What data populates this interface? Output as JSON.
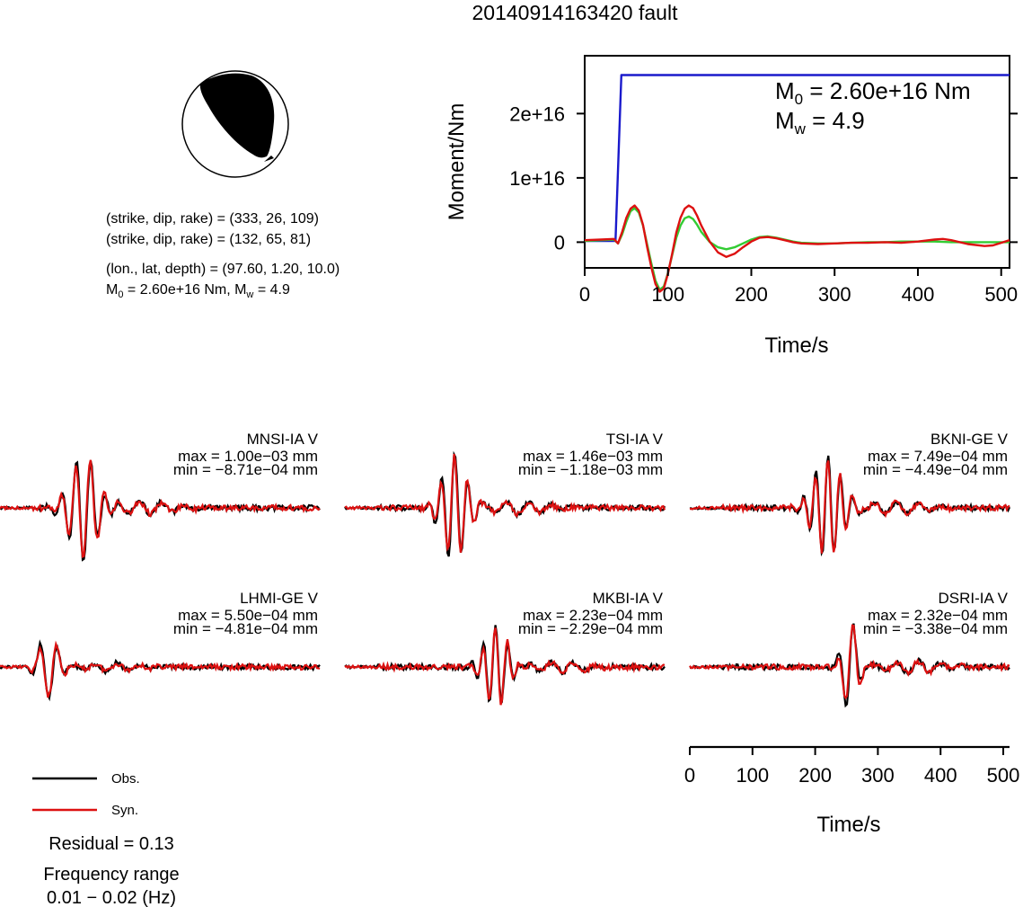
{
  "title": "20140914163420 fault",
  "mechanism": {
    "line1": "(strike, dip, rake) = (333, 26, 109)",
    "line2": "(strike, dip, rake) = (132, 65, 81)",
    "line3": "(lon., lat, depth) = (97.60, 1.20, 10.0)",
    "line4_m0": "2.60e+16 Nm",
    "line4_mw": "4.9",
    "line4_m_prefix": "M",
    "line4_m_sub": "0",
    "line4_eq": " = ",
    "line4_sep": ", M",
    "line4_w": "w",
    "strike1": 333,
    "dip1": 26,
    "rake1": 109,
    "strike2": 132,
    "dip2": 65,
    "rake2": 81,
    "lon": 97.6,
    "lat": 1.2,
    "depth": 10.0
  },
  "colors": {
    "observed": "#000000",
    "synthetic": "#dd1111",
    "moment": "#1a1acc",
    "stf": "#33cc33"
  },
  "chart_data": [
    {
      "type": "line",
      "name": "moment-rate",
      "ylabel": "Moment/Nm",
      "xlabel": "Time/s",
      "xlim": [
        0,
        510
      ],
      "ylim": [
        -4000000000000000.0,
        2.9e+16
      ],
      "xticks": [
        0,
        100,
        200,
        300,
        400,
        500
      ],
      "xtick_labels": [
        "0",
        "100",
        "200",
        "300",
        "400",
        "500"
      ],
      "yticks": [
        0,
        1e+16,
        2e+16
      ],
      "ytick_labels": [
        "0",
        "1e+16",
        "2e+16"
      ],
      "annotation_m0_prefix": "M",
      "annotation_m0_sub": "0",
      "annotation_m0_value": " = 2.60e+16 Nm",
      "annotation_mw_prefix": "M",
      "annotation_mw_sub": "w",
      "annotation_mw_value": " = 4.9",
      "series": [
        {
          "color": "#1a1acc",
          "x": [
            0,
            37,
            44,
            510
          ],
          "y": [
            200000000000000.0,
            200000000000000.0,
            2.6e+16,
            2.6e+16
          ]
        },
        {
          "color": "#33cc33",
          "x": [
            0,
            20,
            35,
            40,
            45,
            50,
            55,
            60,
            65,
            70,
            75,
            80,
            85,
            90,
            95,
            100,
            105,
            110,
            115,
            120,
            125,
            130,
            135,
            140,
            150,
            160,
            170,
            180,
            190,
            200,
            210,
            220,
            230,
            240,
            250,
            260,
            280,
            300,
            320,
            340,
            360,
            380,
            400,
            420,
            440,
            460,
            480,
            500,
            510
          ],
          "y": [
            200000000000000.0,
            300000000000000.0,
            400000000000000.0,
            -200000000000000.0,
            1200000000000000.0,
            3200000000000000.0,
            4800000000000000.0,
            5300000000000000.0,
            4600000000000000.0,
            2600000000000000.0,
            -400000000000000.0,
            -3300000000000000.0,
            -6000000000000000.0,
            -7400000000000000.0,
            -6900000000000000.0,
            -4800000000000000.0,
            -2000000000000000.0,
            700000000000000.0,
            2600000000000000.0,
            3700000000000000.0,
            4000000000000000.0,
            3600000000000000.0,
            2700000000000000.0,
            1600000000000000.0,
            40000000000000.0,
            -800000000000000.0,
            -1100000000000000.0,
            -800000000000000.0,
            -200000000000000.0,
            400000000000000.0,
            800000000000000.0,
            900000000000000.0,
            700000000000000.0,
            400000000000000.0,
            100000000000000.0,
            -100000000000000.0,
            -200000000000000.0,
            -200000000000000.0,
            -100000000000000.0,
            0,
            0,
            100000000000000.0,
            100000000000000.0,
            100000000000000.0,
            0,
            0,
            0,
            0,
            0
          ]
        },
        {
          "color": "#dd1111",
          "x": [
            0,
            20,
            35,
            40,
            45,
            50,
            55,
            60,
            65,
            70,
            75,
            80,
            85,
            90,
            95,
            100,
            105,
            110,
            115,
            120,
            125,
            130,
            135,
            140,
            150,
            160,
            170,
            180,
            190,
            200,
            210,
            220,
            230,
            240,
            250,
            260,
            280,
            300,
            320,
            340,
            360,
            380,
            400,
            420,
            430,
            440,
            460,
            480,
            490,
            500,
            510
          ],
          "y": [
            300000000000000.0,
            400000000000000.0,
            500000000000000.0,
            -200000000000000.0,
            1600000000000000.0,
            3800000000000000.0,
            5200000000000000.0,
            5700000000000000.0,
            4900000000000000.0,
            2700000000000000.0,
            -800000000000000.0,
            -3900000000000000.0,
            -6500000000000000.0,
            -7700000000000000.0,
            -7200000000000000.0,
            -4900000000000000.0,
            -1800000000000000.0,
            1500000000000000.0,
            3800000000000000.0,
            5200000000000000.0,
            5700000000000000.0,
            5300000000000000.0,
            4100000000000000.0,
            2600000000000000.0,
            100000000000000.0,
            -1600000000000000.0,
            -2300000000000000.0,
            -1800000000000000.0,
            -800000000000000.0,
            100000000000000.0,
            700000000000000.0,
            800000000000000.0,
            600000000000000.0,
            300000000000000.0,
            0,
            -200000000000000.0,
            -300000000000000.0,
            -200000000000000.0,
            -100000000000000.0,
            -100000000000000.0,
            0,
            -100000000000000.0,
            100000000000000.0,
            400000000000000.0,
            500000000000000.0,
            300000000000000.0,
            -300000000000000.0,
            -600000000000000.0,
            -500000000000000.0,
            -100000000000000.0,
            300000000000000.0
          ]
        }
      ]
    },
    {
      "type": "line",
      "name": "waveforms",
      "xlabel": "Time/s",
      "xlim": [
        0,
        510
      ],
      "xticks": [
        0,
        100,
        200,
        300,
        400,
        500
      ],
      "xtick_labels": [
        "0",
        "100",
        "200",
        "300",
        "400",
        "500"
      ],
      "legend": {
        "observed": "Obs.",
        "synthetic": "Syn.",
        "placement": "bottom-left"
      },
      "stations": [
        {
          "name": "MNSI-IA V",
          "max": "max = 1.00e−03 mm",
          "min": "min = −8.71e−04 mm",
          "seed": 11
        },
        {
          "name": "TSI-IA V",
          "max": "max = 1.46e−03 mm",
          "min": "min = −1.18e−03 mm",
          "seed": 23
        },
        {
          "name": "BKNI-GE V",
          "max": "max = 7.49e−04 mm",
          "min": "min = −4.49e−04 mm",
          "seed": 37
        },
        {
          "name": "LHMI-GE V",
          "max": "max = 5.50e−04 mm",
          "min": "min = −4.81e−04 mm",
          "seed": 41
        },
        {
          "name": "MKBI-IA V",
          "max": "max = 2.23e−04 mm",
          "min": "min = −2.29e−04 mm",
          "seed": 53
        },
        {
          "name": "DSRI-IA V",
          "max": "max = 2.32e−04 mm",
          "min": "min = −3.38e−04 mm",
          "seed": 67
        }
      ]
    }
  ],
  "residual": "Residual = 0.13",
  "freq_label": "Frequency range",
  "freq_range": "0.01 − 0.02 (Hz)"
}
